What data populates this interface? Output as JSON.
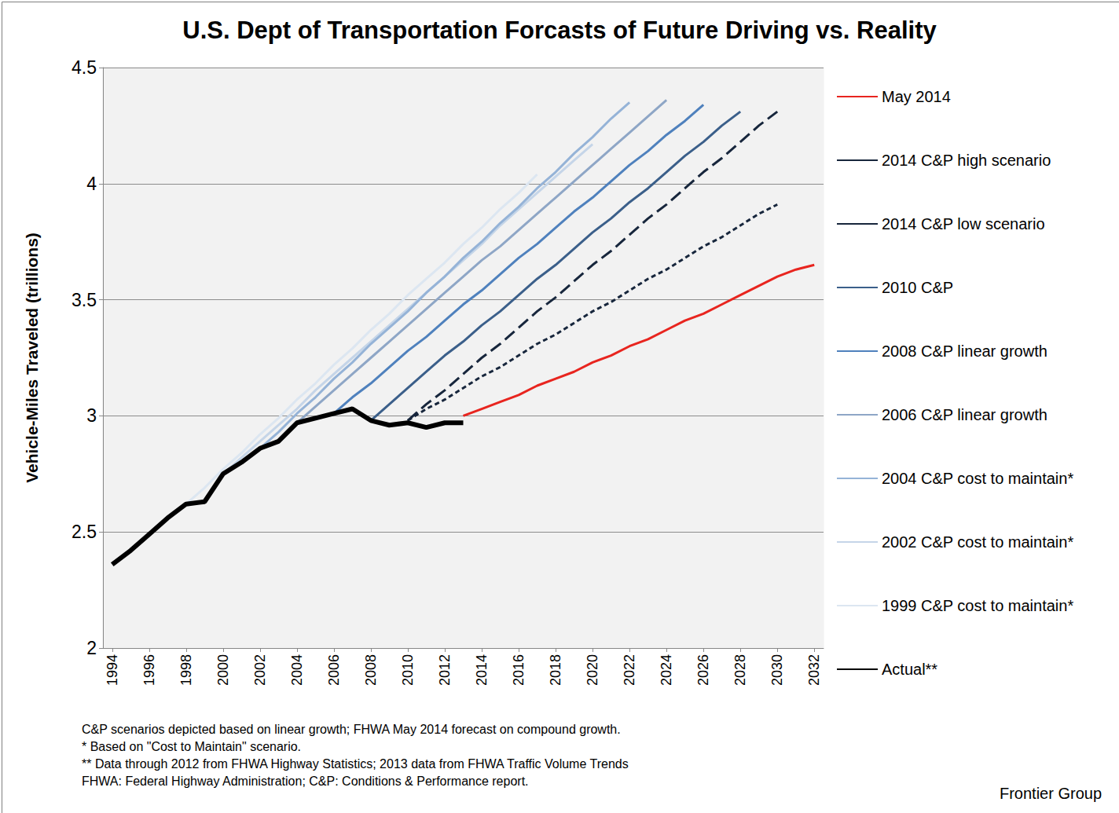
{
  "chart_data": {
    "type": "line",
    "title": "U.S. Dept of Transportation Forcasts of Future Driving vs. Reality",
    "y_label": "Vehicle-Miles Traveled (trillions)",
    "notes": [
      "C&P scenarios depicted based on linear growth; FHWA May 2014 forecast on compound growth.",
      "* Based on \"Cost to Maintain\" scenario.",
      "** Data through 2012 from FHWA Highway Statistics; 2013 data from FHWA Traffic Volume Trends",
      "FHWA: Federal Highway Administration; C&P: Conditions & Performance report."
    ],
    "source": "Frontier Group",
    "x": [
      1994,
      1995,
      1996,
      1997,
      1998,
      1999,
      2000,
      2001,
      2002,
      2003,
      2004,
      2005,
      2006,
      2007,
      2008,
      2009,
      2010,
      2011,
      2012,
      2013,
      2014,
      2015,
      2016,
      2017,
      2018,
      2019,
      2020,
      2021,
      2022,
      2023,
      2024,
      2025,
      2026,
      2027,
      2028,
      2029,
      2030,
      2031,
      2032
    ],
    "xlim": [
      1993.5,
      2032.5
    ],
    "xticks": [
      1994,
      1996,
      1998,
      2000,
      2002,
      2004,
      2006,
      2008,
      2010,
      2012,
      2014,
      2016,
      2018,
      2020,
      2022,
      2024,
      2026,
      2028,
      2030,
      2032
    ],
    "ylim": [
      2,
      4.5
    ],
    "yticks": [
      2,
      2.5,
      3,
      3.5,
      4,
      4.5
    ],
    "grid": true,
    "legend": "right",
    "series": [
      {
        "name": "May 2014",
        "color": "#e8251f",
        "line_style": "solid",
        "values": [
          null,
          null,
          null,
          null,
          null,
          null,
          null,
          null,
          null,
          null,
          null,
          null,
          null,
          null,
          null,
          null,
          null,
          null,
          null,
          3.0,
          3.03,
          3.06,
          3.09,
          3.13,
          3.16,
          3.19,
          3.23,
          3.26,
          3.3,
          3.33,
          3.37,
          3.41,
          3.44,
          3.48,
          3.52,
          3.56,
          3.6,
          3.63,
          3.65
        ]
      },
      {
        "name": "2014 C&P high scenario",
        "color": "#17263c",
        "line_style": "longdash",
        "values": [
          null,
          null,
          null,
          null,
          null,
          null,
          null,
          null,
          null,
          null,
          null,
          null,
          null,
          null,
          null,
          null,
          2.98,
          3.05,
          3.11,
          3.18,
          3.25,
          3.31,
          3.38,
          3.45,
          3.51,
          3.58,
          3.65,
          3.71,
          3.78,
          3.85,
          3.91,
          3.98,
          4.05,
          4.11,
          4.18,
          4.25,
          4.31,
          null,
          null
        ]
      },
      {
        "name": "2014 C&P low scenario",
        "color": "#17263c",
        "line_style": "dash",
        "values": [
          null,
          null,
          null,
          null,
          null,
          null,
          null,
          null,
          null,
          null,
          null,
          null,
          null,
          null,
          null,
          null,
          2.98,
          3.03,
          3.07,
          3.12,
          3.17,
          3.21,
          3.26,
          3.31,
          3.35,
          3.4,
          3.45,
          3.49,
          3.54,
          3.59,
          3.63,
          3.68,
          3.73,
          3.77,
          3.82,
          3.87,
          3.91,
          null,
          null
        ]
      },
      {
        "name": "2010 C&P",
        "color": "#3b5f8a",
        "line_style": "solid",
        "values": [
          null,
          null,
          null,
          null,
          null,
          null,
          null,
          null,
          null,
          null,
          null,
          null,
          null,
          null,
          2.98,
          3.05,
          3.12,
          3.19,
          3.26,
          3.32,
          3.39,
          3.45,
          3.52,
          3.59,
          3.65,
          3.72,
          3.79,
          3.85,
          3.92,
          3.98,
          4.05,
          4.12,
          4.18,
          4.25,
          4.31,
          null,
          null,
          null,
          null
        ]
      },
      {
        "name": "2008 C&P linear growth",
        "color": "#4f81bd",
        "line_style": "solid",
        "values": [
          null,
          null,
          null,
          null,
          null,
          null,
          null,
          null,
          null,
          null,
          null,
          null,
          3.01,
          3.08,
          3.14,
          3.21,
          3.28,
          3.34,
          3.41,
          3.48,
          3.54,
          3.61,
          3.68,
          3.74,
          3.81,
          3.88,
          3.94,
          4.01,
          4.08,
          4.14,
          4.21,
          4.27,
          4.34,
          null,
          null,
          null,
          null,
          null,
          null
        ]
      },
      {
        "name": "2006 C&P linear growth",
        "color": "#8ea6c6",
        "line_style": "solid",
        "values": [
          null,
          null,
          null,
          null,
          null,
          null,
          null,
          null,
          null,
          null,
          2.97,
          3.04,
          3.11,
          3.18,
          3.25,
          3.32,
          3.39,
          3.46,
          3.53,
          3.6,
          3.67,
          3.73,
          3.8,
          3.87,
          3.94,
          4.01,
          4.08,
          4.15,
          4.22,
          4.29,
          4.36,
          null,
          null,
          null,
          null,
          null,
          null,
          null,
          null
        ]
      },
      {
        "name": "2004 C&P cost to maintain*",
        "color": "#95b3d7",
        "line_style": "solid",
        "values": [
          null,
          null,
          null,
          null,
          null,
          null,
          null,
          null,
          2.86,
          2.93,
          3.01,
          3.08,
          3.16,
          3.23,
          3.31,
          3.38,
          3.45,
          3.53,
          3.6,
          3.68,
          3.75,
          3.83,
          3.9,
          3.98,
          4.05,
          4.13,
          4.2,
          4.28,
          4.35,
          null,
          null,
          null,
          null,
          null,
          null,
          null,
          null,
          null,
          null
        ]
      },
      {
        "name": "2002 C&P cost to maintain*",
        "color": "#c5d5e8",
        "line_style": "solid",
        "values": [
          null,
          null,
          null,
          null,
          null,
          null,
          2.75,
          2.82,
          2.89,
          2.96,
          3.03,
          3.11,
          3.18,
          3.25,
          3.32,
          3.39,
          3.46,
          3.53,
          3.6,
          3.67,
          3.74,
          3.82,
          3.89,
          3.96,
          4.03,
          4.1,
          4.17,
          null,
          null,
          null,
          null,
          null,
          null,
          null,
          null,
          null,
          null,
          null,
          null
        ]
      },
      {
        "name": "1999 C&P cost to maintain*",
        "color": "#dce6f1",
        "line_style": "solid",
        "values": [
          null,
          null,
          null,
          null,
          2.62,
          2.69,
          2.77,
          2.84,
          2.92,
          2.99,
          3.07,
          3.14,
          3.22,
          3.29,
          3.37,
          3.44,
          3.52,
          3.59,
          3.66,
          3.74,
          3.81,
          3.89,
          3.96,
          4.04,
          null,
          null,
          null,
          null,
          null,
          null,
          null,
          null,
          null,
          null,
          null,
          null,
          null,
          null,
          null
        ]
      },
      {
        "name": "Actual**",
        "color": "#000000",
        "line_style": "solid",
        "values": [
          2.36,
          2.42,
          2.49,
          2.56,
          2.62,
          2.63,
          2.75,
          2.8,
          2.86,
          2.89,
          2.97,
          2.99,
          3.01,
          3.03,
          2.98,
          2.96,
          2.97,
          2.95,
          2.97,
          2.97,
          null,
          null,
          null,
          null,
          null,
          null,
          null,
          null,
          null,
          null,
          null,
          null,
          null,
          null,
          null,
          null,
          null,
          null,
          null
        ]
      }
    ]
  }
}
